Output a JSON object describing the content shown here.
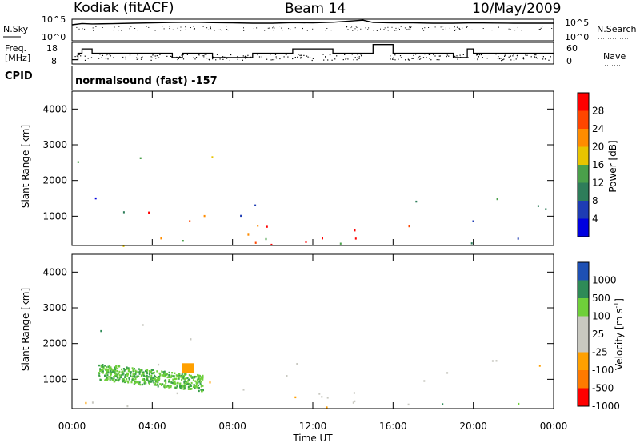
{
  "header": {
    "station": "Kodiak (fitACF)",
    "beam": "Beam 14",
    "date": "10/May/2009"
  },
  "noise_panel": {
    "left_label": "N.Sky",
    "right_label": "N.Search",
    "left_ticks": [
      "10^5",
      "10^0"
    ],
    "right_ticks": [
      "10^5",
      "10^0"
    ]
  },
  "freq_panel": {
    "left_label_line1": "Freq.",
    "left_label_line2": "[MHz]",
    "right_label": "Nave",
    "left_ticks": [
      "18",
      "8"
    ],
    "right_ticks": [
      "60",
      "0"
    ]
  },
  "cpid_panel": {
    "label": "CPID",
    "text": "normalsound (fast) -157"
  },
  "colors": {
    "power": [
      "#0000e0",
      "#1e3cb4",
      "#2e7d5a",
      "#4aa04a",
      "#e8c400",
      "#ff8c00",
      "#ff4600",
      "#ff0000"
    ],
    "velocity": [
      "#ff0000",
      "#ff7a00",
      "#ffa000",
      "#c8c8c0",
      "#c8c8c0",
      "#6fd03a",
      "#2e8b57",
      "#1e50b4"
    ]
  },
  "chart_data": [
    {
      "type": "line",
      "title": "N.Sky",
      "xlabel": "",
      "ylabel": "",
      "x_range_hours": [
        0,
        24
      ],
      "y_scale": "log",
      "ylim": [
        1,
        100000
      ],
      "series": [
        {
          "name": "N.Sky",
          "x": [
            0,
            0.5,
            1,
            2,
            3,
            4,
            5,
            6,
            7,
            8,
            9,
            10,
            11,
            12,
            13,
            14,
            14.5,
            15,
            16,
            17,
            18,
            19,
            20,
            21,
            22,
            23,
            24
          ],
          "values": [
            5000,
            10000,
            8000,
            9000,
            12000,
            14000,
            18000,
            20000,
            16000,
            14000,
            12000,
            12000,
            16000,
            14000,
            20000,
            40000,
            60000,
            18000,
            14000,
            14000,
            12000,
            12000,
            14000,
            13000,
            12000,
            12000,
            12000
          ]
        }
      ]
    },
    {
      "type": "line",
      "title": "",
      "xlabel": "",
      "ylabel": "Freq. [MHz]",
      "x_range_hours": [
        0,
        24
      ],
      "ylim": [
        8,
        18
      ],
      "series": [
        {
          "name": "Freq.",
          "x": [
            0,
            0.3,
            0.5,
            1,
            2,
            3,
            4,
            5,
            5.5,
            6,
            7,
            8,
            9,
            10,
            10.5,
            11,
            12,
            13,
            14,
            14.5,
            15,
            16,
            17,
            18,
            19,
            19.7,
            20,
            21,
            22,
            23,
            24
          ],
          "values": [
            10,
            13,
            15,
            13,
            13,
            13,
            13,
            11,
            13,
            13,
            11,
            11,
            13,
            13,
            13,
            15,
            15,
            13,
            13,
            13,
            17,
            13,
            13,
            13,
            11,
            15,
            13,
            13,
            13,
            13,
            13
          ]
        }
      ]
    },
    {
      "type": "heatmap",
      "title": "Power",
      "xlabel": "Time UT",
      "ylabel": "Slant Range [km]",
      "x_ticks": [
        "00:00",
        "04:00",
        "08:00",
        "12:00",
        "16:00",
        "20:00",
        "00:00"
      ],
      "y_ticks": [
        1000,
        2000,
        3000,
        4000
      ],
      "xlim_hours": [
        0,
        24
      ],
      "ylim": [
        180,
        4500
      ],
      "colorbar_label": "Power [dB]",
      "colorbar_ticks": [
        4,
        8,
        12,
        16,
        20,
        24,
        28
      ],
      "data_gap_hours": [
        14.5,
        15.7
      ]
    },
    {
      "type": "heatmap",
      "title": "Velocity",
      "xlabel": "Time UT",
      "ylabel": "Slant Range [km]",
      "x_ticks": [
        "00:00",
        "04:00",
        "08:00",
        "12:00",
        "16:00",
        "20:00",
        "00:00"
      ],
      "y_ticks": [
        1000,
        2000,
        3000,
        4000
      ],
      "xlim_hours": [
        0,
        24
      ],
      "ylim": [
        180,
        4500
      ],
      "colorbar_label": "Velocity [m s^-1]",
      "colorbar_ticks": [
        1000,
        500,
        100,
        25,
        -25,
        -100,
        -500,
        -1000
      ],
      "data_gap_hours": [
        14.5,
        15.7
      ]
    }
  ]
}
